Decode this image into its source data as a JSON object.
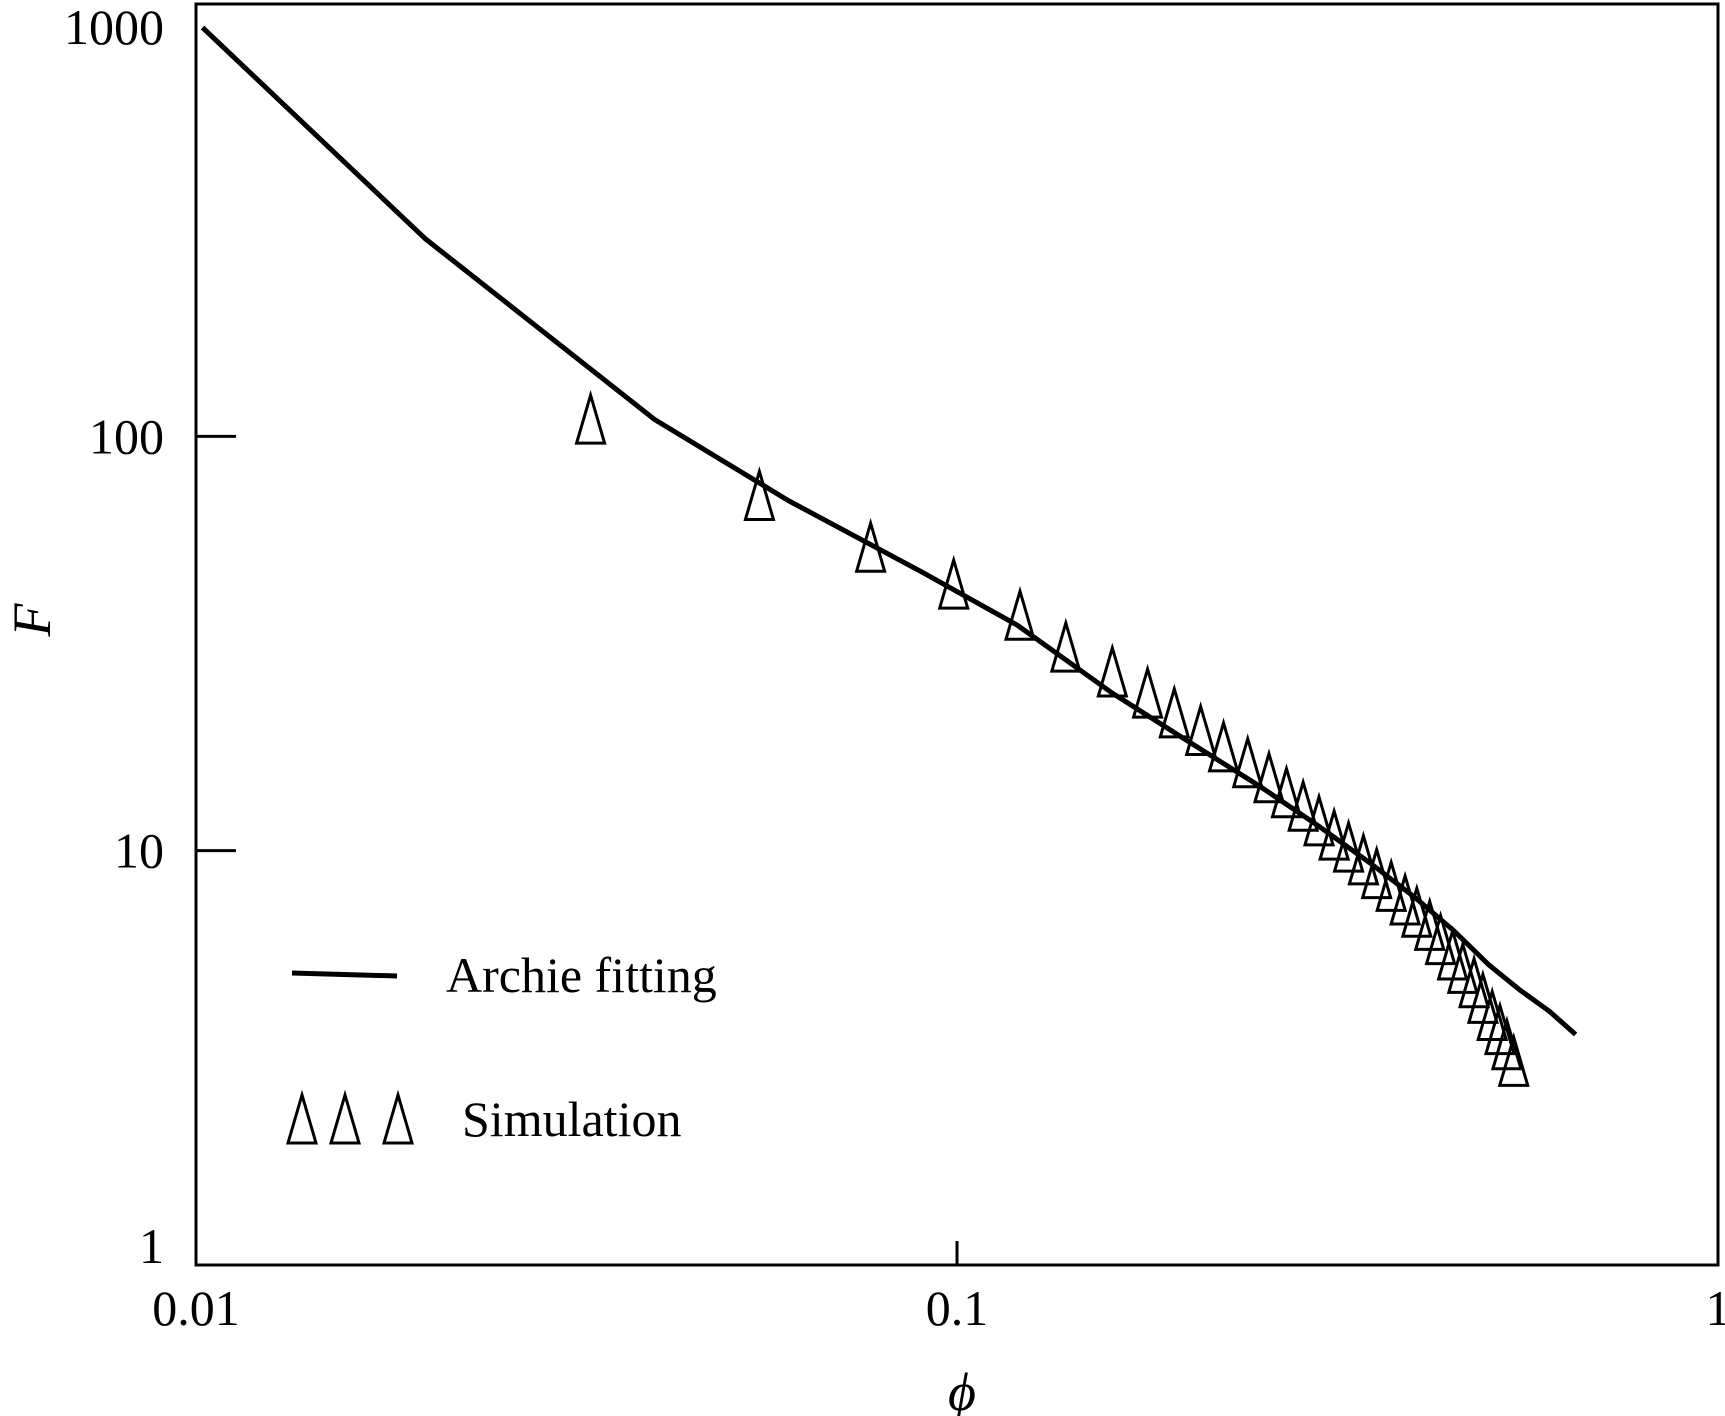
{
  "chart_data": {
    "type": "scatter",
    "xlabel": "ϕ",
    "ylabel": "F",
    "x_scale": "log",
    "y_scale": "log",
    "xlim": [
      0.01,
      1
    ],
    "ylim": [
      1,
      1000
    ],
    "x_ticks": [
      {
        "value": 0.01,
        "label": "0.01"
      },
      {
        "value": 0.1,
        "label": "0.1"
      },
      {
        "value": 1,
        "label": "1"
      }
    ],
    "y_ticks": [
      {
        "value": 1,
        "label": "1"
      },
      {
        "value": 10,
        "label": "10"
      },
      {
        "value": 100,
        "label": "100"
      },
      {
        "value": 1000,
        "label": "1000"
      }
    ],
    "grid": false,
    "legend_position": "bottom-left",
    "series": [
      {
        "name": "Archie fitting",
        "kind": "line",
        "x": [
          0.0102,
          0.02,
          0.04,
          0.06,
          0.09,
          0.12,
          0.16,
          0.2,
          0.25,
          0.3,
          0.35,
          0.4,
          0.45,
          0.5,
          0.55,
          0.6,
          0.65
        ],
        "y": [
          970,
          300,
          110,
          70,
          47,
          35,
          24,
          18.5,
          14.3,
          11.4,
          9.3,
          7.7,
          6.4,
          5.3,
          4.6,
          4.1,
          3.6
        ]
      },
      {
        "name": "Simulation",
        "kind": "scatter",
        "marker": "triangle",
        "x": [
          0.033,
          0.055,
          0.077,
          0.099,
          0.121,
          0.139,
          0.16,
          0.178,
          0.193,
          0.209,
          0.224,
          0.241,
          0.257,
          0.271,
          0.285,
          0.299,
          0.313,
          0.327,
          0.342,
          0.356,
          0.372,
          0.388,
          0.402,
          0.418,
          0.432,
          0.448,
          0.462,
          0.478,
          0.491,
          0.505,
          0.517,
          0.528,
          0.539
        ],
        "y": [
          110,
          72,
          54,
          44,
          37,
          31,
          27,
          24,
          21.5,
          19.5,
          17.8,
          16.3,
          15,
          13.8,
          12.8,
          11.8,
          10.9,
          10.2,
          9.5,
          8.8,
          8.2,
          7.6,
          7.1,
          6.6,
          6.1,
          5.6,
          5.2,
          4.8,
          4.4,
          4,
          3.7,
          3.4,
          3.1
        ]
      }
    ]
  }
}
